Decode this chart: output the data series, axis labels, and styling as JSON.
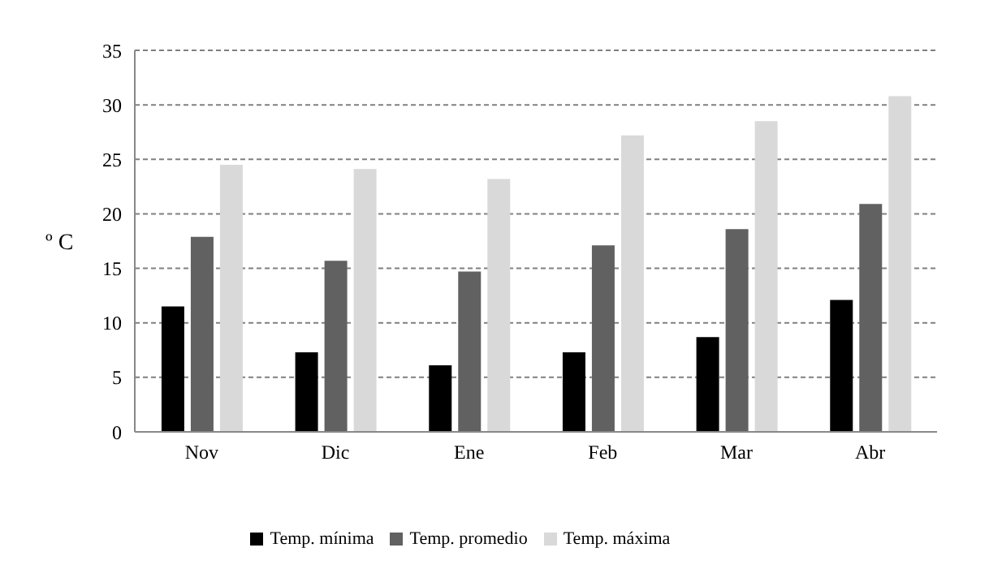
{
  "chart_data": {
    "type": "bar",
    "ylabel": "º C",
    "categories": [
      "Nov",
      "Dic",
      "Ene",
      "Feb",
      "Mar",
      "Abr"
    ],
    "series": [
      {
        "name": "Temp. mínima",
        "color": "#000000",
        "values": [
          11.5,
          7.3,
          6.1,
          7.3,
          8.7,
          12.1
        ]
      },
      {
        "name": "Temp. promedio",
        "color": "#616161",
        "values": [
          17.9,
          15.7,
          14.7,
          17.1,
          18.6,
          20.9
        ]
      },
      {
        "name": "Temp. máxima",
        "color": "#d9d9d9",
        "values": [
          24.5,
          24.1,
          23.2,
          27.2,
          28.5,
          30.8
        ]
      }
    ],
    "ylim": [
      0,
      35
    ],
    "yticks": [
      0,
      5,
      10,
      15,
      20,
      25,
      30,
      35
    ],
    "grid": "y",
    "legend": "bottom"
  }
}
